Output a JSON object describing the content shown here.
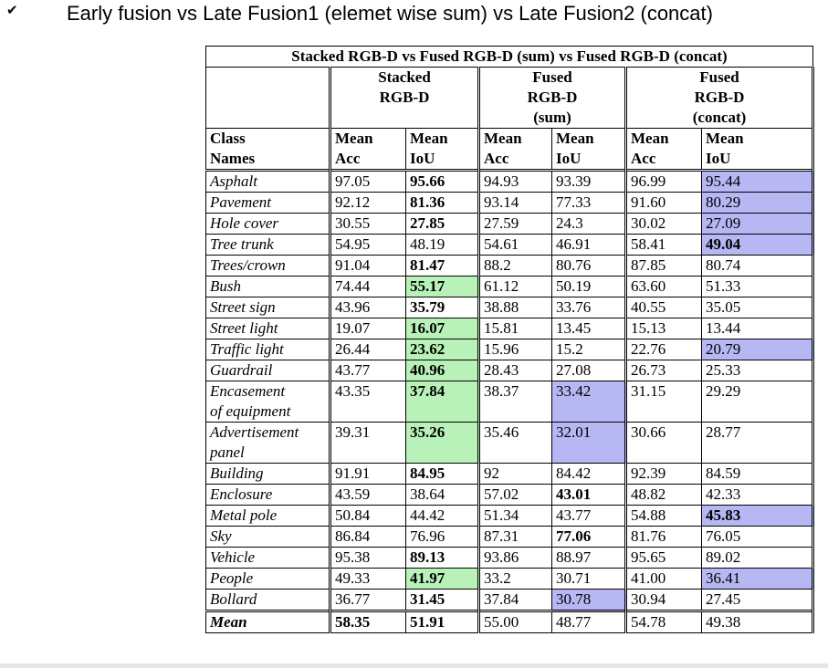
{
  "bullet": "✔",
  "heading": "Early fusion vs Late Fusion1 (elemet wise sum) vs Late Fusion2 (concat)",
  "table": {
    "caption": "Stacked RGB-D vs Fused RGB-D (sum) vs Fused RGB-D (concat)",
    "groups": [
      [
        "Stacked",
        "RGB-D"
      ],
      [
        "Fused",
        "RGB-D",
        "(sum)"
      ],
      [
        "Fused",
        "RGB-D",
        "(concat)"
      ]
    ],
    "class_header": [
      "Class",
      "Names"
    ],
    "metric_headers": [
      [
        "Mean",
        "Acc"
      ],
      [
        "Mean",
        "IoU"
      ],
      [
        "Mean",
        "Acc"
      ],
      [
        "Mean",
        "IoU"
      ],
      [
        "Mean",
        "Acc"
      ],
      [
        "Mean",
        "IoU"
      ]
    ],
    "rows": [
      {
        "name": [
          "Asphalt"
        ],
        "v": [
          "97.05",
          "95.66",
          "94.93",
          "93.39",
          "96.99",
          "95.44"
        ],
        "bold": [
          1
        ],
        "hl": {
          "5": "p"
        }
      },
      {
        "name": [
          "Pavement"
        ],
        "v": [
          "92.12",
          "81.36",
          "93.14",
          "77.33",
          "91.60",
          "80.29"
        ],
        "bold": [
          1
        ],
        "hl": {
          "5": "p"
        }
      },
      {
        "name": [
          "Hole cover"
        ],
        "v": [
          "30.55",
          "27.85",
          "27.59",
          "24.3",
          "30.02",
          "27.09"
        ],
        "bold": [
          1
        ],
        "hl": {
          "5": "p"
        }
      },
      {
        "name": [
          "Tree trunk"
        ],
        "v": [
          "54.95",
          "48.19",
          "54.61",
          "46.91",
          "58.41",
          "49.04"
        ],
        "bold": [
          5
        ],
        "hl": {
          "5": "p"
        }
      },
      {
        "name": [
          "Trees/crown"
        ],
        "v": [
          "91.04",
          "81.47",
          "88.2",
          "80.76",
          "87.85",
          "80.74"
        ],
        "bold": [
          1
        ],
        "hl": {}
      },
      {
        "name": [
          "Bush"
        ],
        "v": [
          "74.44",
          "55.17",
          "61.12",
          "50.19",
          "63.60",
          "51.33"
        ],
        "bold": [
          1
        ],
        "hl": {
          "1": "g"
        }
      },
      {
        "name": [
          "Street sign"
        ],
        "v": [
          "43.96",
          "35.79",
          "38.88",
          "33.76",
          "40.55",
          "35.05"
        ],
        "bold": [
          1
        ],
        "hl": {}
      },
      {
        "name": [
          "Street light"
        ],
        "v": [
          "19.07",
          "16.07",
          "15.81",
          "13.45",
          "15.13",
          "13.44"
        ],
        "bold": [
          1
        ],
        "hl": {
          "1": "g"
        }
      },
      {
        "name": [
          "Traffic light"
        ],
        "v": [
          "26.44",
          "23.62",
          "15.96",
          "15.2",
          "22.76",
          "20.79"
        ],
        "bold": [
          1
        ],
        "hl": {
          "1": "g",
          "5": "p"
        }
      },
      {
        "name": [
          "Guardrail"
        ],
        "v": [
          "43.77",
          "40.96",
          "28.43",
          "27.08",
          "26.73",
          "25.33"
        ],
        "bold": [
          1
        ],
        "hl": {
          "1": "g"
        }
      },
      {
        "name": [
          "Encasement",
          "of equipment"
        ],
        "v": [
          "43.35",
          "37.84",
          "38.37",
          "33.42",
          "31.15",
          "29.29"
        ],
        "bold": [
          1
        ],
        "hl": {
          "1": "g",
          "3": "p"
        }
      },
      {
        "name": [
          "Advertisement",
          "panel"
        ],
        "v": [
          "39.31",
          "35.26",
          "35.46",
          "32.01",
          "30.66",
          "28.77"
        ],
        "bold": [
          1
        ],
        "hl": {
          "1": "g",
          "3": "p"
        }
      },
      {
        "name": [
          "Building"
        ],
        "v": [
          "91.91",
          "84.95",
          "92",
          "84.42",
          "92.39",
          "84.59"
        ],
        "bold": [
          1
        ],
        "hl": {}
      },
      {
        "name": [
          "Enclosure"
        ],
        "v": [
          "43.59",
          "38.64",
          "57.02",
          "43.01",
          "48.82",
          "42.33"
        ],
        "bold": [
          3
        ],
        "hl": {}
      },
      {
        "name": [
          "Metal pole"
        ],
        "v": [
          "50.84",
          "44.42",
          "51.34",
          "43.77",
          "54.88",
          "45.83"
        ],
        "bold": [
          5
        ],
        "hl": {
          "5": "p"
        }
      },
      {
        "name": [
          "Sky"
        ],
        "v": [
          "86.84",
          "76.96",
          "87.31",
          "77.06",
          "81.76",
          "76.05"
        ],
        "bold": [
          3
        ],
        "hl": {}
      },
      {
        "name": [
          "Vehicle"
        ],
        "v": [
          "95.38",
          "89.13",
          "93.86",
          "88.97",
          "95.65",
          "89.02"
        ],
        "bold": [
          1
        ],
        "hl": {}
      },
      {
        "name": [
          "People"
        ],
        "v": [
          "49.33",
          "41.97",
          "33.2",
          "30.71",
          "41.00",
          "36.41"
        ],
        "bold": [
          1
        ],
        "hl": {
          "1": "g",
          "5": "p"
        }
      },
      {
        "name": [
          "Bollard"
        ],
        "v": [
          "36.77",
          "31.45",
          "37.84",
          "30.78",
          "30.94",
          "27.45"
        ],
        "bold": [
          1
        ],
        "hl": {
          "3": "p"
        }
      }
    ],
    "mean_row": {
      "name": "Mean",
      "v": [
        "58.35",
        "51.91",
        "55.00",
        "48.77",
        "54.78",
        "49.38"
      ],
      "bold": [
        0,
        1
      ]
    }
  }
}
